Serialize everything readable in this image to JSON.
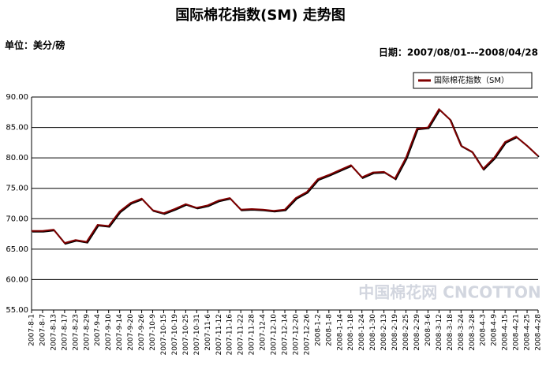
{
  "chart_data": {
    "type": "line",
    "title": "国际棉花指数(SM) 走势图",
    "unit_label": "单位：美分/磅",
    "date_label": "日期：2007/08/01---2008/04/28",
    "watermark": "中国棉花网 CNCOTTON",
    "categories": [
      "2007-8-1",
      "2007-8-7",
      "2007-8-13",
      "2007-8-17",
      "2007-8-23",
      "2007-8-29",
      "2007-9-4",
      "2007-9-10",
      "2007-9-14",
      "2007-9-20",
      "2007-9-26",
      "2007-10-9",
      "2007-10-15",
      "2007-10-19",
      "2007-10-25",
      "2007-10-31",
      "2007-11-6",
      "2007-11-12",
      "2007-11-16",
      "2007-11-22",
      "2007-11-28",
      "2007-12-4",
      "2007-12-10",
      "2007-12-14",
      "2007-12-20",
      "2007-12-26",
      "2008-1-2",
      "2008-1-8",
      "2008-1-14",
      "2008-1-18",
      "2008-1-24",
      "2008-1-30",
      "2008-2-13",
      "2008-2-19",
      "2008-2-25",
      "2008-2-29",
      "2008-3-6",
      "2008-3-12",
      "2008-3-18",
      "2008-3-24",
      "2008-3-28",
      "2008-4-3",
      "2008-4-9",
      "2008-4-15",
      "2008-4-21",
      "2008-4-25",
      "2008-4-28"
    ],
    "series": [
      {
        "name": "国际棉花指数（SM）",
        "color": "#800000",
        "values": [
          68.0,
          68.0,
          68.2,
          66.0,
          66.5,
          66.2,
          69.0,
          68.8,
          71.2,
          72.6,
          73.3,
          71.4,
          70.9,
          71.6,
          72.4,
          71.8,
          72.2,
          73.0,
          73.4,
          71.5,
          71.6,
          71.5,
          71.3,
          71.5,
          73.4,
          74.4,
          76.5,
          77.2,
          78.0,
          78.8,
          76.8,
          77.6,
          77.7,
          76.6,
          80.0,
          84.8,
          85.0,
          88.0,
          86.3,
          82.0,
          81.0,
          78.2,
          80.0,
          82.6,
          83.5,
          82.0,
          80.3
        ]
      }
    ],
    "ylim": [
      55,
      90
    ],
    "yticks": [
      {
        "value": 55,
        "label": "55.00"
      },
      {
        "value": 60,
        "label": "60.00"
      },
      {
        "value": 65,
        "label": "65.00"
      },
      {
        "value": 70,
        "label": "70.00"
      },
      {
        "value": 75,
        "label": "75.00"
      },
      {
        "value": 80,
        "label": "80.00"
      },
      {
        "value": 85,
        "label": "85.00"
      },
      {
        "value": 90,
        "label": "90.00"
      }
    ],
    "grid": true,
    "legend": "top-right"
  }
}
